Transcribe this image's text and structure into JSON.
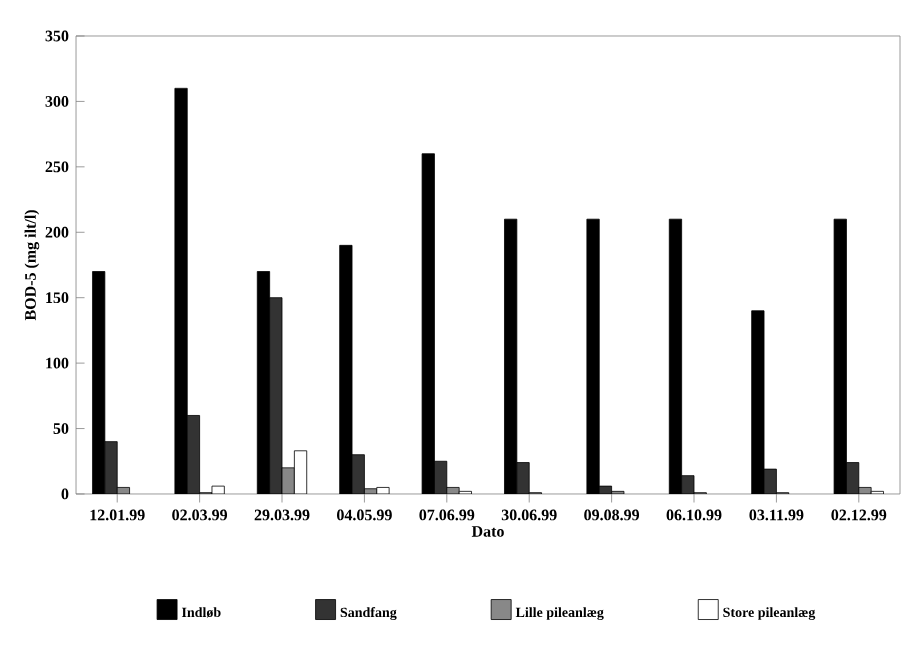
{
  "chart_data": {
    "type": "bar",
    "xlabel": "Dato",
    "ylabel": "BOD-5 (mg ilt/l)",
    "categories": [
      "12.01.99",
      "02.03.99",
      "29.03.99",
      "04.05.99",
      "07.06.99",
      "30.06.99",
      "09.08.99",
      "06.10.99",
      "03.11.99",
      "02.12.99"
    ],
    "series": [
      {
        "name": "Indløb",
        "color": "#000000",
        "values": [
          170,
          310,
          170,
          190,
          260,
          210,
          210,
          210,
          140,
          210
        ]
      },
      {
        "name": "Sandfang",
        "color": "#333333",
        "values": [
          40,
          60,
          150,
          30,
          25,
          24,
          6,
          14,
          19,
          24
        ]
      },
      {
        "name": "Lille pileanlæg",
        "color": "#888888",
        "values": [
          5,
          1,
          20,
          4,
          5,
          1,
          2,
          1,
          1,
          5
        ]
      },
      {
        "name": "Store pileanlæg",
        "color": "#ffffff",
        "values": [
          null,
          6,
          33,
          5,
          2,
          null,
          null,
          null,
          null,
          2
        ]
      }
    ],
    "ylim": [
      0,
      350
    ],
    "yticks": [
      0,
      50,
      100,
      150,
      200,
      250,
      300,
      350
    ],
    "legend": "bottom",
    "grid": false
  }
}
